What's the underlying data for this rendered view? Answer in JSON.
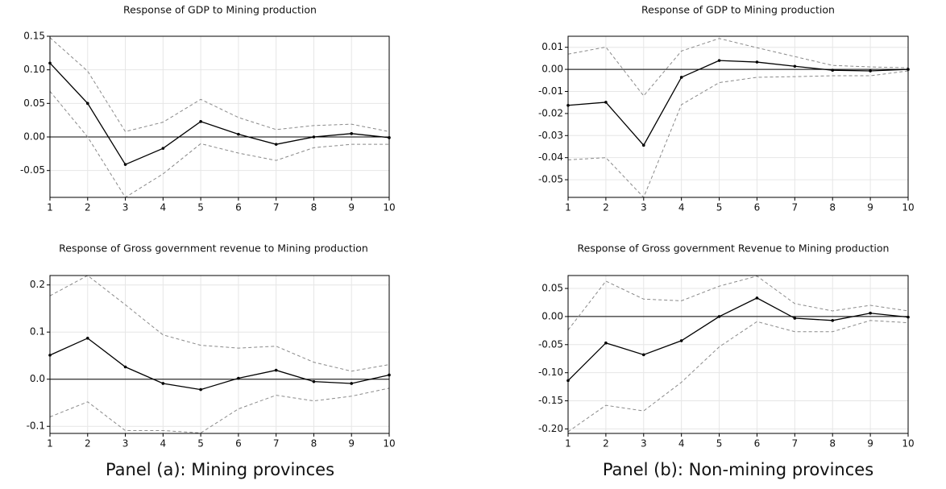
{
  "chart_data": [
    {
      "type": "line",
      "title": "Response of GDP to Mining production",
      "x": [
        1,
        2,
        3,
        4,
        5,
        6,
        7,
        8,
        9,
        10
      ],
      "xlim": [
        1,
        10
      ],
      "xticks": [
        1,
        2,
        3,
        4,
        5,
        6,
        7,
        8,
        9,
        10
      ],
      "ylim": [
        -0.09,
        0.15
      ],
      "yticks": [
        0.15,
        {
          "value": 0.1,
          "label": "0.10"
        },
        0.05,
        {
          "value": 0,
          "label": "0.00"
        },
        -0.05
      ],
      "grid": true,
      "zero_line": true,
      "series": [
        {
          "color": "#000000",
          "dash": false,
          "markers": true,
          "values": [
            0.11,
            0.05,
            -0.041,
            -0.017,
            0.023,
            0.004,
            -0.011,
            0.0,
            0.005,
            -0.001
          ]
        },
        {
          "color": "#8a8a8a",
          "dash": true,
          "markers": false,
          "values": [
            0.148,
            0.098,
            0.008,
            0.022,
            0.056,
            0.029,
            0.011,
            0.017,
            0.019,
            0.008
          ]
        },
        {
          "color": "#8a8a8a",
          "dash": true,
          "markers": false,
          "values": [
            0.068,
            0.0,
            -0.09,
            -0.055,
            -0.01,
            -0.024,
            -0.035,
            -0.016,
            -0.011,
            -0.011
          ]
        }
      ]
    },
    {
      "type": "line",
      "title": "Response of GDP to Mining production",
      "x": [
        1,
        2,
        3,
        4,
        5,
        6,
        7,
        8,
        9,
        10
      ],
      "xlim": [
        1,
        10
      ],
      "xticks": [
        1,
        2,
        3,
        4,
        5,
        6,
        7,
        8,
        9,
        10
      ],
      "ylim": [
        -0.058,
        0.015
      ],
      "yticks": [
        0.01,
        {
          "value": 0,
          "label": "0.00"
        },
        -0.01,
        -0.02,
        -0.03,
        -0.04,
        -0.05
      ],
      "grid": true,
      "zero_line": true,
      "series": [
        {
          "color": "#000000",
          "dash": false,
          "markers": true,
          "values": [
            -0.0163,
            -0.0149,
            -0.0344,
            -0.0036,
            0.004,
            0.0033,
            0.0014,
            -0.0004,
            -0.0007,
            0.0
          ]
        },
        {
          "color": "#8a8a8a",
          "dash": true,
          "markers": false,
          "values": [
            0.0069,
            0.0101,
            -0.012,
            0.0083,
            0.014,
            0.0098,
            0.0058,
            0.0018,
            0.0011,
            0.0007
          ]
        },
        {
          "color": "#8a8a8a",
          "dash": true,
          "markers": false,
          "values": [
            -0.041,
            -0.04,
            -0.058,
            -0.016,
            -0.006,
            -0.0036,
            -0.0033,
            -0.0029,
            -0.0029,
            -0.0007
          ]
        }
      ]
    },
    {
      "type": "line",
      "title": "Response of Gross government revenue to Mining production",
      "x": [
        1,
        2,
        3,
        4,
        5,
        6,
        7,
        8,
        9,
        10
      ],
      "xlim": [
        1,
        10
      ],
      "xticks": [
        1,
        2,
        3,
        4,
        5,
        6,
        7,
        8,
        9,
        10
      ],
      "ylim": [
        -0.115,
        0.22
      ],
      "yticks": [
        0.2,
        0.1,
        {
          "value": 0,
          "label": "0.0"
        },
        -0.1
      ],
      "grid": true,
      "zero_line": true,
      "series": [
        {
          "color": "#000000",
          "dash": false,
          "markers": true,
          "values": [
            0.051,
            0.087,
            0.026,
            -0.009,
            -0.022,
            0.002,
            0.019,
            -0.005,
            -0.009,
            0.009
          ]
        },
        {
          "color": "#8a8a8a",
          "dash": true,
          "markers": false,
          "values": [
            0.177,
            0.22,
            0.158,
            0.094,
            0.072,
            0.066,
            0.07,
            0.036,
            0.017,
            0.031
          ]
        },
        {
          "color": "#8a8a8a",
          "dash": true,
          "markers": false,
          "values": [
            -0.08,
            -0.048,
            -0.109,
            -0.109,
            -0.114,
            -0.063,
            -0.034,
            -0.046,
            -0.036,
            -0.019
          ]
        }
      ]
    },
    {
      "type": "line",
      "title": "Response of Gross government Revenue to Mining production",
      "x": [
        1,
        2,
        3,
        4,
        5,
        6,
        7,
        8,
        9,
        10
      ],
      "xlim": [
        1,
        10
      ],
      "xticks": [
        1,
        2,
        3,
        4,
        5,
        6,
        7,
        8,
        9,
        10
      ],
      "ylim": [
        -0.208,
        0.073
      ],
      "yticks": [
        0.05,
        {
          "value": 0,
          "label": "0.00"
        },
        -0.05,
        {
          "value": -0.1,
          "label": "-0.10"
        },
        -0.15,
        {
          "value": -0.2,
          "label": "-0.20"
        }
      ],
      "grid": true,
      "zero_line": true,
      "series": [
        {
          "color": "#000000",
          "dash": false,
          "markers": true,
          "values": [
            -0.114,
            -0.047,
            -0.068,
            -0.043,
            0.0,
            0.033,
            -0.003,
            -0.007,
            0.006,
            -0.001
          ]
        },
        {
          "color": "#8a8a8a",
          "dash": true,
          "markers": false,
          "values": [
            -0.024,
            0.063,
            0.031,
            0.028,
            0.054,
            0.072,
            0.023,
            0.01,
            0.02,
            0.01
          ]
        },
        {
          "color": "#8a8a8a",
          "dash": true,
          "markers": false,
          "values": [
            -0.205,
            -0.158,
            -0.168,
            -0.117,
            -0.054,
            -0.009,
            -0.027,
            -0.027,
            -0.007,
            -0.011
          ]
        }
      ]
    }
  ],
  "captions": [
    "Panel (a): Mining provinces",
    "Panel (b): Non-mining provinces"
  ]
}
